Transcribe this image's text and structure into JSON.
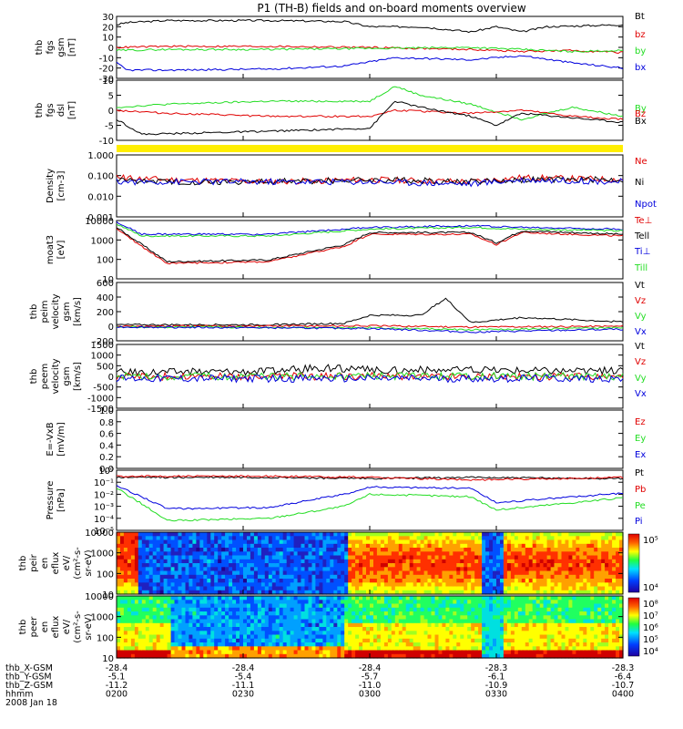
{
  "title": "P1 (TH-B) fields and on-board moments overview",
  "colors": {
    "black": "#000000",
    "red": "#e00000",
    "green": "#22dd22",
    "blue": "#0000dd",
    "yellow": "#ffee00"
  },
  "chart_data": [
    {
      "type": "line",
      "id": "bgsm",
      "ylabel": [
        "thb",
        "fgs",
        "gsm",
        "[nT]"
      ],
      "yticks": [
        "30",
        "20",
        "10",
        "0",
        "-10",
        "-20",
        "-30"
      ],
      "yrange": [
        -30,
        30
      ],
      "series": [
        {
          "name": "Bt",
          "color": "#000000",
          "x": [
            0,
            0.02,
            0.1,
            0.3,
            0.45,
            0.5,
            0.6,
            0.7,
            0.75,
            0.8,
            0.85,
            1
          ],
          "y": [
            22,
            24,
            26,
            26,
            25,
            20,
            20,
            15,
            20,
            15,
            20,
            22
          ]
        },
        {
          "name": "bz",
          "color": "#e00000",
          "x": [
            0,
            0.1,
            0.3,
            0.5,
            0.7,
            0.8,
            0.9,
            1
          ],
          "y": [
            0,
            1,
            1,
            0,
            -2,
            -4,
            -3,
            -5
          ]
        },
        {
          "name": "by",
          "color": "#22dd22",
          "x": [
            0,
            0.1,
            0.3,
            0.5,
            0.7,
            0.8,
            0.9,
            1
          ],
          "y": [
            -3,
            -2,
            -2,
            -1,
            0,
            -2,
            -4,
            -3
          ]
        },
        {
          "name": "bx",
          "color": "#0000dd",
          "x": [
            0,
            0.02,
            0.1,
            0.3,
            0.45,
            0.55,
            0.7,
            0.8,
            0.9,
            1
          ],
          "y": [
            -15,
            -22,
            -22,
            -21,
            -18,
            -10,
            -12,
            -8,
            -15,
            -20
          ]
        }
      ]
    },
    {
      "type": "line",
      "id": "bdsl",
      "ylabel": [
        "thb",
        "fgs",
        "dsl",
        "[nT]"
      ],
      "yticks": [
        "10",
        "5",
        "0",
        "-5",
        "-10"
      ],
      "yrange": [
        -10,
        10
      ],
      "series": [
        {
          "name": "By",
          "color": "#22dd22",
          "x": [
            0,
            0.1,
            0.3,
            0.5,
            0.55,
            0.6,
            0.7,
            0.8,
            0.9,
            1
          ],
          "y": [
            1,
            2,
            3,
            3,
            8,
            5,
            2,
            -3,
            1,
            -2
          ]
        },
        {
          "name": "Bz",
          "color": "#e00000",
          "x": [
            0,
            0.1,
            0.3,
            0.5,
            0.55,
            0.7,
            0.8,
            0.9,
            1
          ],
          "y": [
            0,
            -1,
            -2,
            -2,
            0,
            -1,
            0,
            -2,
            -3
          ]
        },
        {
          "name": "Bx",
          "color": "#000000",
          "x": [
            0,
            0.05,
            0.3,
            0.5,
            0.55,
            0.6,
            0.7,
            0.75,
            0.8,
            1
          ],
          "y": [
            -3,
            -8,
            -7,
            -6,
            3,
            1,
            -2,
            -5,
            -1,
            -4
          ]
        }
      ]
    },
    {
      "type": "bar",
      "id": "flag",
      "ylabel": [],
      "yticks": [],
      "series": []
    },
    {
      "type": "line",
      "id": "density",
      "log": true,
      "ylabel": [
        "Density",
        "[cm-3]"
      ],
      "yticks": [
        "1.000",
        "0.100",
        "0.010",
        "0.001"
      ],
      "yrange": [
        -3,
        0
      ],
      "series": [
        {
          "name": "Ne",
          "color": "#e00000",
          "x": [
            0,
            0.1,
            0.3,
            0.5,
            0.7,
            0.8,
            1
          ],
          "y": [
            -1.1,
            -1.2,
            -1.3,
            -1.2,
            -1.3,
            -1.1,
            -1.2
          ]
        },
        {
          "name": "Ni",
          "color": "#000000",
          "x": [
            0,
            0.1,
            0.3,
            0.5,
            0.7,
            0.8,
            1
          ],
          "y": [
            -1.2,
            -1.3,
            -1.3,
            -1.2,
            -1.3,
            -1.2,
            -1.2
          ]
        },
        {
          "name": "Npot",
          "color": "#0000dd",
          "x": [
            0,
            0.3,
            0.5,
            0.7,
            0.8,
            1
          ],
          "y": [
            -1.3,
            -1.3,
            -1.3,
            -1.4,
            -1.2,
            -1.3
          ]
        }
      ]
    },
    {
      "type": "line",
      "id": "temp",
      "log": true,
      "ylabel": [
        "moat3",
        "[eV]"
      ],
      "yticks": [
        "10000",
        "1000",
        "100",
        "10"
      ],
      "yrange": [
        0.6,
        4
      ],
      "series": [
        {
          "name": "Te⊥",
          "color": "#e00000",
          "x": [
            0,
            0.05,
            0.1,
            0.3,
            0.45,
            0.5,
            0.7,
            0.75,
            0.8,
            1
          ],
          "y": [
            3.5,
            2.5,
            1.5,
            1.6,
            2.5,
            3.2,
            3.2,
            2.6,
            3.3,
            3.1
          ]
        },
        {
          "name": "Tell",
          "color": "#000000",
          "x": [
            0,
            0.05,
            0.1,
            0.3,
            0.45,
            0.5,
            0.7,
            0.75,
            0.8,
            1
          ],
          "y": [
            3.6,
            2.6,
            1.6,
            1.7,
            2.6,
            3.3,
            3.3,
            2.7,
            3.4,
            3.2
          ]
        },
        {
          "name": "Ti⊥",
          "color": "#0000dd",
          "x": [
            0,
            0.05,
            0.3,
            0.5,
            0.7,
            0.8,
            1
          ],
          "y": [
            3.9,
            3.2,
            3.2,
            3.6,
            3.7,
            3.6,
            3.5
          ]
        },
        {
          "name": "Till",
          "color": "#22dd22",
          "x": [
            0,
            0.05,
            0.3,
            0.5,
            0.7,
            0.8,
            1
          ],
          "y": [
            3.8,
            3.1,
            3.1,
            3.5,
            3.6,
            3.5,
            3.4
          ]
        }
      ]
    },
    {
      "type": "line",
      "id": "vi",
      "ylabel": [
        "thb",
        "peim",
        "velocity",
        "gsm",
        "[km/s]"
      ],
      "yticks": [
        "600",
        "400",
        "200",
        "0",
        "-200"
      ],
      "yrange": [
        -200,
        600
      ],
      "series": [
        {
          "name": "Vt",
          "color": "#000000",
          "x": [
            0,
            0.3,
            0.45,
            0.5,
            0.6,
            0.65,
            0.7,
            0.8,
            1
          ],
          "y": [
            20,
            20,
            40,
            150,
            150,
            380,
            50,
            120,
            60
          ]
        },
        {
          "name": "Vz",
          "color": "#e00000",
          "x": [
            0,
            0.5,
            0.7,
            1
          ],
          "y": [
            0,
            5,
            -10,
            0
          ]
        },
        {
          "name": "Vy",
          "color": "#22dd22",
          "x": [
            0,
            0.5,
            0.7,
            1
          ],
          "y": [
            -10,
            -20,
            -50,
            -20
          ]
        },
        {
          "name": "Vx",
          "color": "#0000dd",
          "x": [
            0,
            0.5,
            0.7,
            1
          ],
          "y": [
            -10,
            -30,
            -80,
            -40
          ]
        }
      ]
    },
    {
      "type": "line",
      "id": "ve",
      "ylabel": [
        "thb",
        "peem",
        "velocity",
        "gsm",
        "[km/s]"
      ],
      "yticks": [
        "1500",
        "1000",
        "500",
        "0",
        "-500",
        "-1000",
        "-1500"
      ],
      "yrange": [
        -1500,
        1500
      ],
      "series": [
        {
          "name": "Vt",
          "color": "#000000",
          "x": [
            0,
            0.3,
            0.4,
            0.5,
            0.7,
            1
          ],
          "y": [
            200,
            250,
            400,
            300,
            300,
            250
          ]
        },
        {
          "name": "Vz",
          "color": "#e00000",
          "x": [
            0,
            1
          ],
          "y": [
            0,
            0
          ]
        },
        {
          "name": "Vy",
          "color": "#22dd22",
          "x": [
            0,
            1
          ],
          "y": [
            0,
            0
          ]
        },
        {
          "name": "Vx",
          "color": "#0000dd",
          "x": [
            0,
            1
          ],
          "y": [
            -100,
            -100
          ]
        }
      ]
    },
    {
      "type": "line",
      "id": "evxb",
      "ylabel": [
        "E=-VxB",
        "[mV/m]"
      ],
      "yticks": [
        "1.0",
        "0.8",
        "0.6",
        "0.4",
        "0.2",
        "0.0"
      ],
      "yrange": [
        0,
        1
      ],
      "series": [
        {
          "name": "Ez",
          "color": "#e00000",
          "x": [],
          "y": []
        },
        {
          "name": "Ey",
          "color": "#22dd22",
          "x": [],
          "y": []
        },
        {
          "name": "Ex",
          "color": "#0000dd",
          "x": [],
          "y": []
        }
      ]
    },
    {
      "type": "line",
      "id": "pressure",
      "log": true,
      "ylabel": [
        "Pressure",
        "[nPa]"
      ],
      "yticks": [
        "10⁰",
        "10⁻¹",
        "10⁻²",
        "10⁻³",
        "10⁻⁴",
        "10⁻⁵"
      ],
      "yrange": [
        -5,
        0
      ],
      "series": [
        {
          "name": "Pt",
          "color": "#000000",
          "x": [
            0,
            0.1,
            0.3,
            0.5,
            0.7,
            1
          ],
          "y": [
            -0.6,
            -0.6,
            -0.6,
            -0.7,
            -0.6,
            -0.7
          ]
        },
        {
          "name": "Pb",
          "color": "#e00000",
          "x": [
            0,
            0.1,
            0.3,
            0.5,
            0.7,
            1
          ],
          "y": [
            -0.5,
            -0.5,
            -0.5,
            -0.6,
            -0.8,
            -0.6
          ]
        },
        {
          "name": "Pe",
          "color": "#22dd22",
          "x": [
            0,
            0.05,
            0.1,
            0.3,
            0.45,
            0.5,
            0.7,
            0.75,
            1
          ],
          "y": [
            -1.5,
            -2.8,
            -4.2,
            -4.0,
            -3.0,
            -2.0,
            -2.2,
            -3.3,
            -2.3
          ]
        },
        {
          "name": "Pi",
          "color": "#0000dd",
          "x": [
            0,
            0.05,
            0.1,
            0.3,
            0.45,
            0.5,
            0.7,
            0.75,
            1
          ],
          "y": [
            -1.3,
            -2.2,
            -3.2,
            -3.1,
            -2.0,
            -1.4,
            -1.5,
            -2.7,
            -1.9
          ]
        }
      ]
    },
    {
      "type": "heatmap",
      "id": "eflux_i",
      "ylabel": [
        "thb",
        "peir",
        "en",
        "eflux",
        "eV/",
        "(cm²-s-",
        "sr-eV)"
      ],
      "yticks": [
        "10000",
        "1000",
        "100",
        "10"
      ],
      "colorbar": [
        "10⁵",
        "10⁴"
      ]
    },
    {
      "type": "heatmap",
      "id": "eflux_e",
      "ylabel": [
        "thb",
        "peer",
        "en",
        "eflux",
        "eV/",
        "(cm²-s-",
        "sr-eV)"
      ],
      "yticks": [
        "10000",
        "1000",
        "100",
        "10"
      ],
      "colorbar": [
        "10⁸",
        "10⁷",
        "10⁶",
        "10⁵",
        "10⁴"
      ]
    }
  ],
  "xaxis": {
    "rows": [
      {
        "label": "thb_X-GSM",
        "values": [
          "-28.4",
          "-28.4",
          "-28.4",
          "-28.3",
          "-28.3"
        ]
      },
      {
        "label": "thb_Y-GSM",
        "values": [
          "-5.1",
          "-5.4",
          "-5.7",
          "-6.1",
          "-6.4"
        ]
      },
      {
        "label": "thb_Z-GSM",
        "values": [
          "-11.2",
          "-11.1",
          "-11.0",
          "-10.9",
          "-10.7"
        ]
      },
      {
        "label": "hhmm",
        "values": [
          "0200",
          "0230",
          "0300",
          "0330",
          "0400"
        ]
      }
    ],
    "date": "2008 Jan 18"
  }
}
